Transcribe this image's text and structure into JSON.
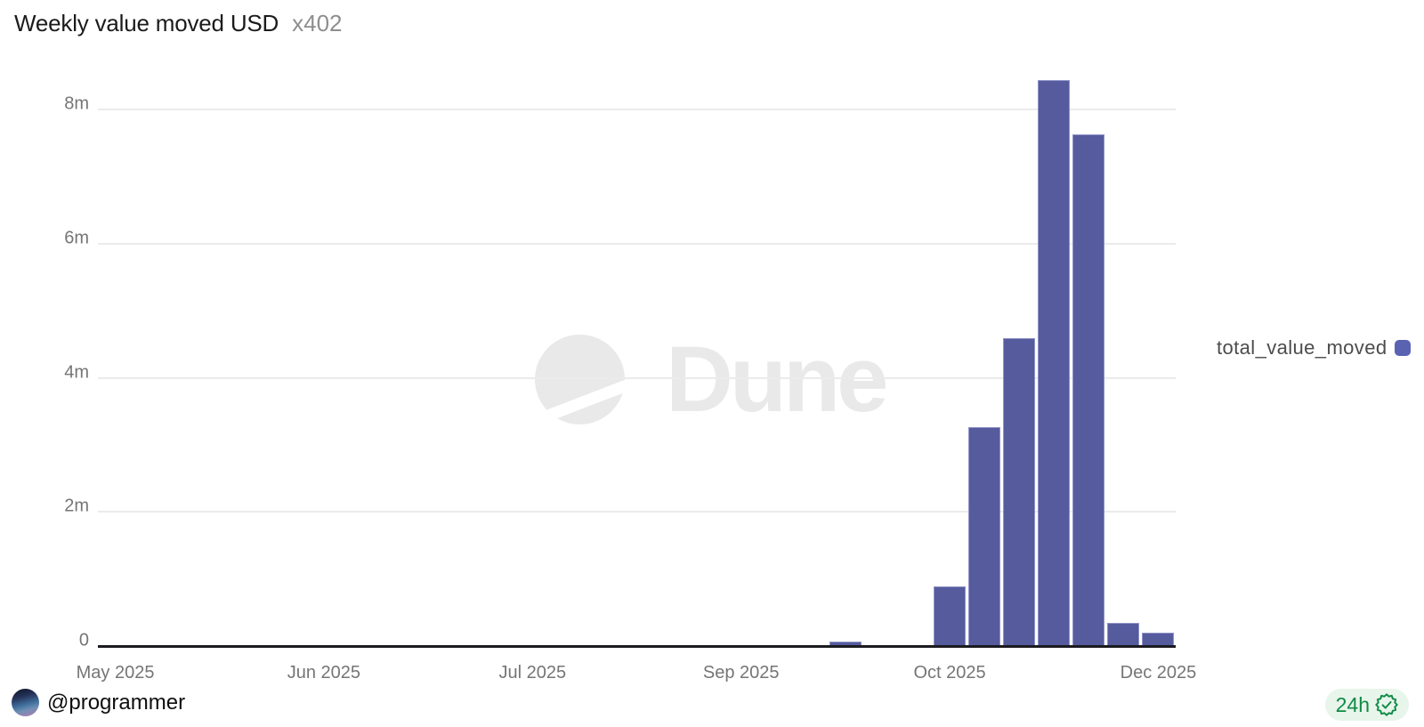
{
  "header": {
    "title": "Weekly value moved USD",
    "subtitle": "x402"
  },
  "watermark": {
    "text": "Dune"
  },
  "legend": {
    "label": "total_value_moved",
    "swatch_color": "#5a62b2"
  },
  "footer": {
    "author": "@programmer",
    "timeframe": "24h"
  },
  "icons": {
    "watermark": "dune-logo-icon",
    "badge": "verified-seal-icon"
  },
  "colors": {
    "bar": "#555b9d",
    "bar_border": "#9093c8",
    "legend_swatch": "#5a62b2",
    "gridline": "#ebebeb",
    "axis_text": "#757575",
    "baseline": "#1b1b20",
    "title": "#1b1b1b",
    "subtitle": "#8e8e8e",
    "watermark": "#e9e9e9",
    "badge_bg": "#e7f5eb",
    "badge_green": "#0f8a45"
  },
  "chart_data": {
    "type": "bar",
    "title": "Weekly value moved USD",
    "subtitle": "x402",
    "x_axis_unit": "week",
    "n_slots": 31,
    "grid": "horizontal",
    "legend_position": "right",
    "ylim": [
      0,
      8600000
    ],
    "y_ticks": [
      {
        "value": 0,
        "label": "0"
      },
      {
        "value": 2000000,
        "label": "2m"
      },
      {
        "value": 4000000,
        "label": "4m"
      },
      {
        "value": 6000000,
        "label": "6m"
      },
      {
        "value": 8000000,
        "label": "8m"
      }
    ],
    "x_tick_labels": [
      {
        "slot": 0,
        "label": "May 2025"
      },
      {
        "slot": 6,
        "label": "Jun 2025"
      },
      {
        "slot": 12,
        "label": "Jul 2025"
      },
      {
        "slot": 18,
        "label": "Sep 2025"
      },
      {
        "slot": 24,
        "label": "Oct 2025"
      },
      {
        "slot": 30,
        "label": "Dec 2025"
      }
    ],
    "series": [
      {
        "name": "total_value_moved",
        "color": "#555b9d",
        "values": [
          0,
          0,
          0,
          0,
          0,
          0,
          0,
          0,
          0,
          0,
          0,
          0,
          0,
          0,
          0,
          0,
          0,
          0,
          0,
          0,
          0,
          60000,
          0,
          0,
          890000,
          3260000,
          4590000,
          8440000,
          7630000,
          350000,
          200000
        ]
      }
    ]
  }
}
